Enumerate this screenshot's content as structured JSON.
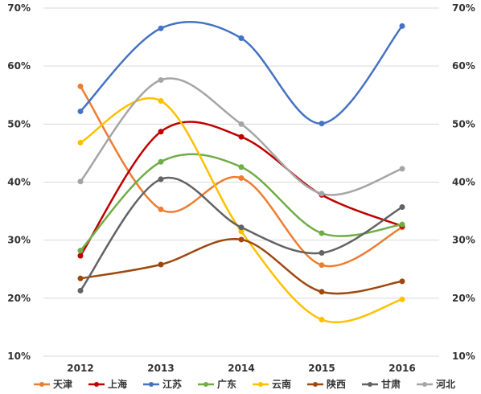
{
  "chart_data": {
    "type": "line",
    "title": "",
    "xlabel": "",
    "ylabel": "",
    "categories": [
      "2012",
      "2013",
      "2014",
      "2015",
      "2016"
    ],
    "ylim": [
      10,
      70
    ],
    "yticks": [
      10,
      20,
      30,
      40,
      50,
      60,
      70
    ],
    "ytick_labels": [
      "10%",
      "20%",
      "30%",
      "40%",
      "50%",
      "60%",
      "70%"
    ],
    "grid": {
      "horizontal": true,
      "vertical": false
    },
    "legend_position": "bottom",
    "smooth": true,
    "secondary_axis_right": true,
    "series": [
      {
        "name": "天津",
        "color": "#ED7D31",
        "values": [
          56.5,
          35.3,
          40.7,
          25.7,
          32.2
        ]
      },
      {
        "name": "上海",
        "color": "#C00000",
        "values": [
          27.3,
          48.7,
          47.8,
          37.8,
          32.4
        ]
      },
      {
        "name": "江苏",
        "color": "#4472C4",
        "values": [
          52.2,
          66.5,
          64.8,
          50.1,
          66.9
        ]
      },
      {
        "name": "广东",
        "color": "#70AD47",
        "values": [
          28.2,
          43.5,
          42.6,
          31.2,
          32.7
        ]
      },
      {
        "name": "云南",
        "color": "#FFC000",
        "values": [
          46.8,
          54.0,
          31.5,
          16.3,
          19.8
        ]
      },
      {
        "name": "陕西",
        "color": "#9E480E",
        "values": [
          23.4,
          25.8,
          30.1,
          21.1,
          22.9
        ]
      },
      {
        "name": "甘肃",
        "color": "#636363",
        "values": [
          21.3,
          40.5,
          32.2,
          27.8,
          35.7
        ]
      },
      {
        "name": "河北",
        "color": "#A5A5A5",
        "values": [
          40.1,
          57.6,
          50.0,
          38.0,
          42.3
        ]
      }
    ]
  }
}
